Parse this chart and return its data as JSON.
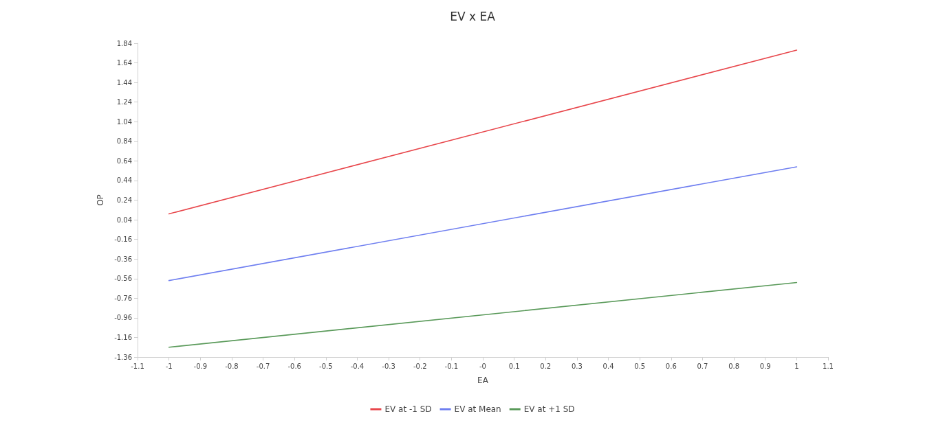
{
  "chart_data": {
    "type": "line",
    "title": "EV x EA",
    "xlabel": "EA",
    "ylabel": "OP",
    "x": [
      -1,
      1
    ],
    "series": [
      {
        "name": "EV at -1 SD",
        "color": "#e8474c",
        "values": [
          0.1,
          1.77
        ]
      },
      {
        "name": "EV at Mean",
        "color": "#6f7ff0",
        "values": [
          -0.58,
          0.58
        ]
      },
      {
        "name": "EV at +1 SD",
        "color": "#5a9a5a",
        "values": [
          -1.26,
          -0.6
        ]
      }
    ],
    "xlim": [
      -1.1,
      1.1
    ],
    "xticks": [
      -1.1,
      -1,
      -0.9,
      -0.8,
      -0.7,
      -0.6,
      -0.5,
      -0.4,
      -0.3,
      -0.2,
      -0.1,
      {
        "value": 0,
        "label": "-0"
      },
      0.1,
      0.2,
      0.3,
      0.4,
      0.5,
      0.6,
      0.7,
      0.8,
      0.9,
      1,
      1.1
    ],
    "ylim": [
      -1.36,
      1.84
    ],
    "yticks": [
      -1.36,
      -1.16,
      -0.96,
      -0.76,
      -0.56,
      -0.36,
      -0.16,
      0.04,
      0.24,
      0.44,
      0.64,
      0.84,
      1.04,
      1.24,
      1.44,
      1.64,
      1.84
    ],
    "grid": false,
    "legend": "bottom",
    "marker": "none",
    "line_style": "solid"
  }
}
